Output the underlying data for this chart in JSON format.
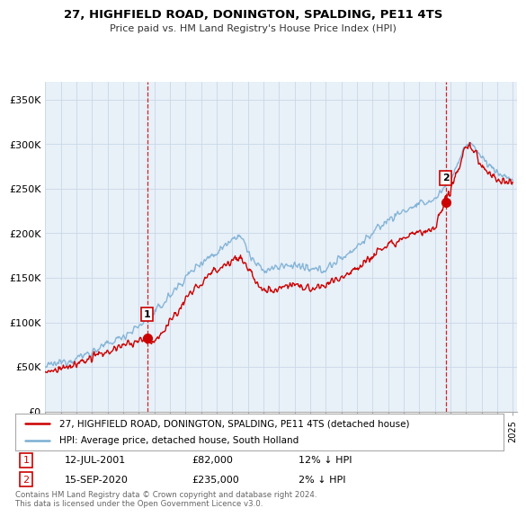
{
  "title": "27, HIGHFIELD ROAD, DONINGTON, SPALDING, PE11 4TS",
  "subtitle": "Price paid vs. HM Land Registry's House Price Index (HPI)",
  "legend_line1": "27, HIGHFIELD ROAD, DONINGTON, SPALDING, PE11 4TS (detached house)",
  "legend_line2": "HPI: Average price, detached house, South Holland",
  "footer": "Contains HM Land Registry data © Crown copyright and database right 2024.\nThis data is licensed under the Open Government Licence v3.0.",
  "transaction1": {
    "label": "1",
    "date": "12-JUL-2001",
    "price": "£82,000",
    "hpi": "12% ↓ HPI"
  },
  "transaction2": {
    "label": "2",
    "date": "15-SEP-2020",
    "price": "£235,000",
    "hpi": "2% ↓ HPI"
  },
  "sale_color": "#cc0000",
  "hpi_color": "#7bafd4",
  "vline_color": "#cc0000",
  "plot_bg": "#e8f0f8",
  "ylim": [
    0,
    370000
  ],
  "yticks": [
    0,
    50000,
    100000,
    150000,
    200000,
    250000,
    300000,
    350000
  ],
  "ytick_labels": [
    "£0",
    "£50K",
    "£100K",
    "£150K",
    "£200K",
    "£250K",
    "£300K",
    "£350K"
  ],
  "background_color": "#ffffff",
  "grid_color": "#c8d8e8",
  "sale_points": [
    {
      "year": 2001.53,
      "price": 82000,
      "label": "1"
    },
    {
      "year": 2020.71,
      "price": 235000,
      "label": "2"
    }
  ],
  "hpi_anchors_x": [
    1995,
    1996,
    1997,
    1998,
    1999,
    2000,
    2001,
    2002,
    2003,
    2004,
    2005,
    2006,
    2007,
    2007.5,
    2008,
    2008.5,
    2009,
    2010,
    2011,
    2012,
    2013,
    2014,
    2015,
    2016,
    2017,
    2018,
    2019,
    2020,
    2021,
    2021.5,
    2022,
    2022.5,
    2023,
    2024,
    2025
  ],
  "hpi_anchors_y": [
    50000,
    55000,
    60000,
    67000,
    75000,
    85000,
    95000,
    110000,
    130000,
    150000,
    168000,
    178000,
    195000,
    198000,
    180000,
    165000,
    158000,
    162000,
    165000,
    158000,
    160000,
    172000,
    185000,
    200000,
    215000,
    225000,
    232000,
    238000,
    260000,
    280000,
    298000,
    300000,
    285000,
    268000,
    260000
  ],
  "pp_anchors_x": [
    1995,
    1996,
    1997,
    1998,
    1999,
    2000,
    2001,
    2001.53,
    2002,
    2003,
    2004,
    2005,
    2006,
    2007,
    2007.5,
    2008,
    2008.5,
    2009,
    2010,
    2011,
    2012,
    2013,
    2014,
    2015,
    2016,
    2017,
    2018,
    2019,
    2020,
    2020.71,
    2021,
    2021.5,
    2022,
    2022.5,
    2023,
    2024,
    2025
  ],
  "pp_anchors_y": [
    43000,
    48000,
    53000,
    60000,
    67000,
    74000,
    78000,
    82000,
    78000,
    100000,
    125000,
    145000,
    160000,
    170000,
    172000,
    162000,
    145000,
    135000,
    140000,
    143000,
    137000,
    140000,
    152000,
    162000,
    175000,
    188000,
    195000,
    200000,
    204000,
    235000,
    250000,
    272000,
    298000,
    295000,
    275000,
    260000,
    258000
  ]
}
